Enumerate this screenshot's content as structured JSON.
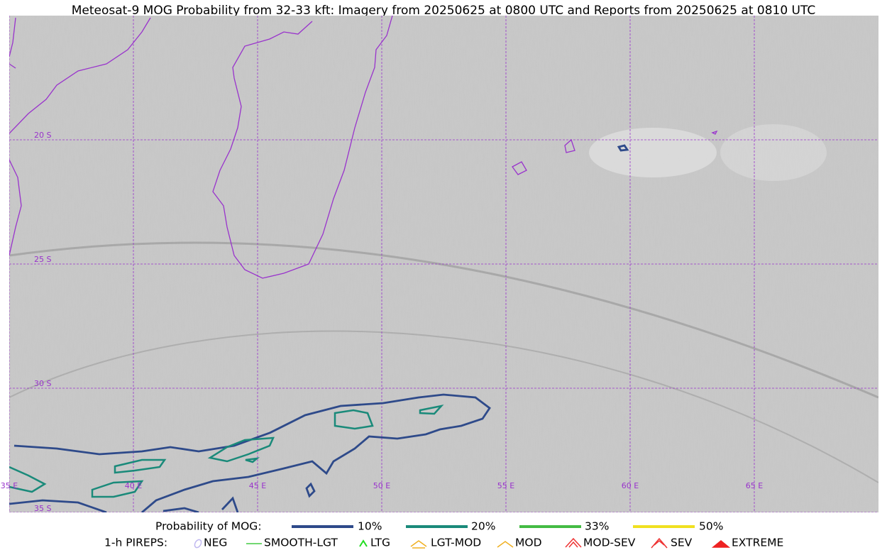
{
  "title": "Meteosat-9 MOG Probability from 32-33 kft: Imagery from 20250625 at 0800 UTC and Reports from 20250625 at 0810 UTC",
  "grid": {
    "lat_labels": [
      "20 S",
      "25 S",
      "30 S",
      "35 S"
    ],
    "lon_labels": [
      "35 E",
      "40 E",
      "45 E",
      "50 E",
      "55 E",
      "60 E",
      "65 E"
    ]
  },
  "legend": {
    "probability": {
      "label": "Probability of MOG:",
      "items": [
        "10%",
        "20%",
        "33%",
        "50%"
      ]
    },
    "pireps": {
      "label": "1-h PIREPS:",
      "items": [
        "NEG",
        "SMOOTH-LGT",
        "LTG",
        "LGT-MOD",
        "MOD",
        "MOD-SEV",
        "SEV",
        "EXTREME"
      ]
    }
  }
}
